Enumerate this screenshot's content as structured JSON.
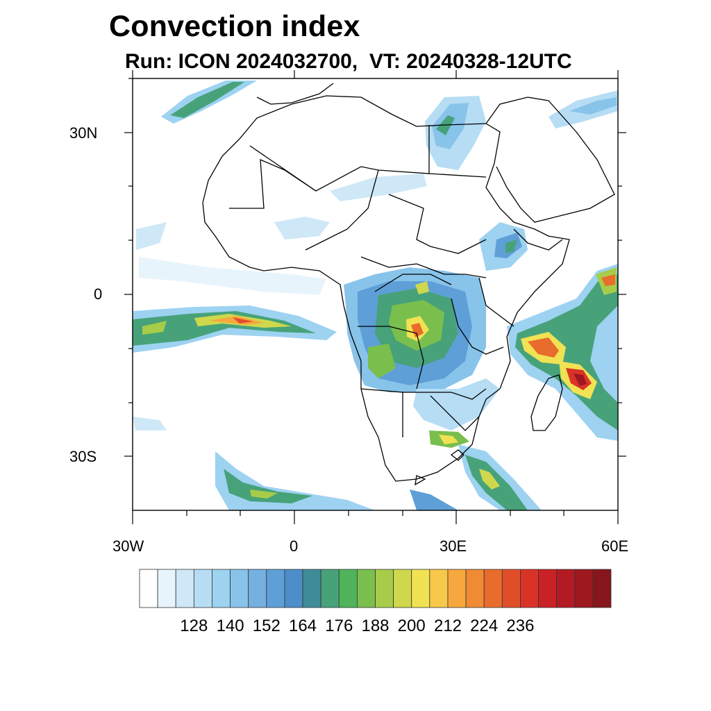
{
  "header": {
    "title": "Convection index",
    "subtitle": "Run: ICON 2024032700,  VT: 20240328-12UTC"
  },
  "map": {
    "projection": "cylindrical-equidistant",
    "lon_range": [
      -30,
      60
    ],
    "lat_range": [
      -40,
      40
    ],
    "lat_ticks": [
      {
        "value": 30,
        "label": "30N"
      },
      {
        "value": 0,
        "label": "0"
      },
      {
        "value": -30,
        "label": "30S"
      }
    ],
    "lon_ticks": [
      {
        "value": -30,
        "label": "30W"
      },
      {
        "value": 0,
        "label": "0"
      },
      {
        "value": 30,
        "label": "30E"
      },
      {
        "value": 60,
        "label": "60E"
      }
    ]
  },
  "colorbar": {
    "colors": [
      "#ffffff",
      "#e8f4fb",
      "#cfe8f7",
      "#b6ddf4",
      "#9dd2f1",
      "#88c3ea",
      "#74b1e1",
      "#5f9fd7",
      "#4c8dca",
      "#3f8c98",
      "#47a27a",
      "#4fb35a",
      "#7abf4e",
      "#a7cc49",
      "#cfd84d",
      "#f0e253",
      "#f7c84a",
      "#f6a83e",
      "#f08a33",
      "#e86c2c",
      "#e04e29",
      "#d93328",
      "#c82126",
      "#b31a24",
      "#9e1820",
      "#86161b"
    ],
    "labels": [
      "128",
      "140",
      "152",
      "164",
      "176",
      "188",
      "200",
      "212",
      "224",
      "236"
    ]
  }
}
